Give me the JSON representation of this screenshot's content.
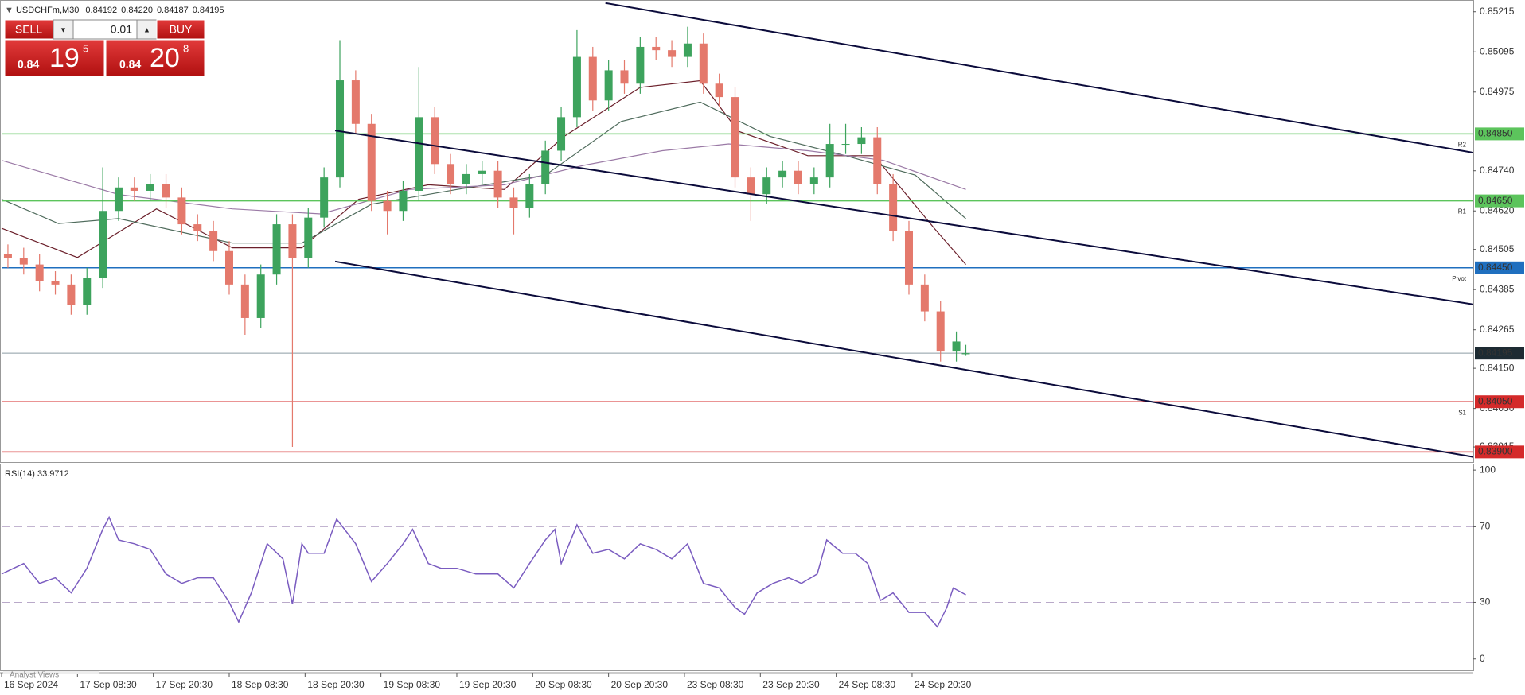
{
  "chart_data": [
    {
      "type": "candlestick",
      "title": "USDCHFm,M30",
      "ohlc_labels": [
        "0.84192",
        "0.84220",
        "0.84187",
        "0.84195"
      ],
      "x": [
        2,
        7,
        12,
        17,
        22,
        27,
        32,
        37,
        42,
        47,
        52,
        57,
        62,
        67,
        72,
        77,
        82,
        87,
        92,
        97,
        102,
        107,
        112,
        117,
        122,
        127,
        132,
        137,
        142,
        147,
        152,
        157,
        162,
        167,
        172,
        177,
        182,
        187,
        192,
        197,
        202,
        207,
        212,
        217,
        222,
        227,
        232,
        237,
        242,
        247,
        252,
        257,
        262,
        267,
        272,
        277,
        282,
        287,
        292,
        297,
        302,
        305
      ],
      "open": [
        0.8449,
        0.8448,
        0.8446,
        0.8441,
        0.844,
        0.8434,
        0.8442,
        0.8462,
        0.8469,
        0.8468,
        0.847,
        0.8466,
        0.8458,
        0.8456,
        0.845,
        0.844,
        0.843,
        0.8443,
        0.8458,
        0.8448,
        0.846,
        0.8472,
        0.8501,
        0.8488,
        0.8465,
        0.8462,
        0.8468,
        0.849,
        0.8476,
        0.847,
        0.8473,
        0.8474,
        0.8466,
        0.8463,
        0.847,
        0.848,
        0.849,
        0.8508,
        0.8495,
        0.8504,
        0.85,
        0.8511,
        0.851,
        0.8508,
        0.8512,
        0.85,
        0.8496,
        0.8472,
        0.8467,
        0.8472,
        0.8474,
        0.847,
        0.8472,
        0.8482,
        0.8482,
        0.8484,
        0.847,
        0.8456,
        0.844,
        0.8432,
        0.842,
        0.84192
      ],
      "high": [
        0.8452,
        0.8451,
        0.8449,
        0.8444,
        0.8443,
        0.8445,
        0.8475,
        0.8472,
        0.8472,
        0.8473,
        0.8473,
        0.8469,
        0.8461,
        0.8459,
        0.8453,
        0.8443,
        0.8446,
        0.8461,
        0.8461,
        0.8463,
        0.8475,
        0.8513,
        0.8504,
        0.8491,
        0.8468,
        0.8471,
        0.8505,
        0.8493,
        0.8479,
        0.8476,
        0.8477,
        0.8477,
        0.8469,
        0.8473,
        0.8483,
        0.8493,
        0.8516,
        0.8511,
        0.8507,
        0.8507,
        0.8514,
        0.8514,
        0.8513,
        0.8517,
        0.8515,
        0.8503,
        0.8499,
        0.8475,
        0.8475,
        0.8477,
        0.8477,
        0.8475,
        0.8488,
        0.8488,
        0.8487,
        0.8487,
        0.8473,
        0.8459,
        0.8443,
        0.8435,
        0.8426,
        0.8422
      ],
      "low": [
        0.8445,
        0.8443,
        0.8438,
        0.8437,
        0.8431,
        0.8431,
        0.8439,
        0.8459,
        0.8465,
        0.8465,
        0.8463,
        0.8455,
        0.8453,
        0.8447,
        0.8437,
        0.8425,
        0.8427,
        0.844,
        0.83915,
        0.8445,
        0.8457,
        0.8469,
        0.8485,
        0.8462,
        0.8455,
        0.8459,
        0.8465,
        0.8473,
        0.8467,
        0.8467,
        0.847,
        0.8463,
        0.8455,
        0.846,
        0.8467,
        0.8477,
        0.8487,
        0.8492,
        0.8492,
        0.8497,
        0.8497,
        0.8507,
        0.8505,
        0.8505,
        0.8497,
        0.8493,
        0.8469,
        0.8459,
        0.8464,
        0.8469,
        0.8467,
        0.8467,
        0.8469,
        0.8479,
        0.8479,
        0.8467,
        0.8453,
        0.8437,
        0.8429,
        0.8417,
        0.8417,
        0.84187
      ],
      "close": [
        0.8448,
        0.8446,
        0.8441,
        0.844,
        0.8434,
        0.8442,
        0.8462,
        0.8469,
        0.8468,
        0.847,
        0.8466,
        0.8458,
        0.8456,
        0.845,
        0.844,
        0.843,
        0.8443,
        0.8458,
        0.8448,
        0.846,
        0.8472,
        0.8501,
        0.8488,
        0.8465,
        0.8462,
        0.8468,
        0.849,
        0.8476,
        0.847,
        0.8473,
        0.8474,
        0.8466,
        0.8463,
        0.847,
        0.848,
        0.849,
        0.8508,
        0.8495,
        0.8504,
        0.85,
        0.8511,
        0.851,
        0.8508,
        0.8512,
        0.85,
        0.8496,
        0.8472,
        0.8467,
        0.8472,
        0.8474,
        0.847,
        0.8472,
        0.8482,
        0.8482,
        0.8484,
        0.847,
        0.8456,
        0.844,
        0.8432,
        0.842,
        0.8423,
        0.84195
      ],
      "up_color": "#3da35d",
      "down_color": "#e4796c",
      "xlim": [
        0,
        465.5
      ],
      "ylim": [
        0.8387,
        0.8525
      ],
      "yticks": [
        0.85215,
        0.85095,
        0.84975,
        {
          "value": 0.8474,
          "label": "0.84740"
        },
        {
          "value": 0.8462,
          "label": "0.84620"
        },
        0.84505,
        0.84385,
        0.84265,
        {
          "value": 0.8415,
          "label": "0.84150"
        },
        {
          "value": 0.8403,
          "label": "0.84030"
        },
        0.83915
      ],
      "moving_averages": [
        {
          "color": "#6b1f2a",
          "x": [
            0,
            24,
            49,
            73,
            95,
            113,
            135,
            159,
            178,
            202,
            221,
            233,
            255,
            276,
            295,
            305
          ],
          "values": [
            0.84568,
            0.84481,
            0.84626,
            0.8451,
            0.8451,
            0.84655,
            0.84698,
            0.84684,
            0.84843,
            0.84989,
            0.85009,
            0.84858,
            0.84785,
            0.84785,
            0.84568,
            0.8446
          ]
        },
        {
          "color": "#4f6b5c",
          "x": [
            0,
            18,
            37,
            73,
            95,
            117,
            144,
            172,
            196,
            221,
            243,
            267,
            289,
            305
          ],
          "values": [
            0.84655,
            0.84582,
            0.84597,
            0.84524,
            0.84524,
            0.8464,
            0.84684,
            0.84727,
            0.84887,
            0.84945,
            0.84843,
            0.84785,
            0.84727,
            0.84597
          ]
        },
        {
          "color": "#9b7aa6",
          "x": [
            0,
            37,
            73,
            101,
            129,
            159,
            184,
            209,
            230,
            255,
            279,
            305
          ],
          "values": [
            0.84771,
            0.84669,
            0.84626,
            0.84611,
            0.84684,
            0.84698,
            0.84756,
            0.848,
            0.8482,
            0.848,
            0.84771,
            0.84684
          ]
        }
      ],
      "trendlines": [
        {
          "color": "#0b0b3b",
          "x": [
            191,
            465.5
          ],
          "y": [
            0.85241,
            0.84794
          ]
        },
        {
          "color": "#0b0b3b",
          "x": [
            105.5,
            465.5
          ],
          "y": [
            0.8486,
            0.84341
          ]
        },
        {
          "color": "#0b0b3b",
          "x": [
            105.5,
            465.5
          ],
          "y": [
            0.84469,
            0.83885
          ]
        }
      ],
      "levels": [
        {
          "name": "R2",
          "value": 0.8485,
          "label": "0.84850",
          "color": "#5cc45c"
        },
        {
          "name": "R1",
          "value": 0.8465,
          "label": "0.84650",
          "color": "#5cc45c"
        },
        {
          "name": "Pivot",
          "value": 0.8445,
          "label": "0.84450",
          "color": "#1f6fbf"
        },
        {
          "name": "S1",
          "value": 0.8405,
          "label": "0.84050",
          "color": "#d42a2a"
        },
        {
          "value": 0.839,
          "label": "0.83900",
          "color": "#d42a2a"
        }
      ],
      "last_price": 0.84195,
      "trade_panel": {
        "sell": "SELL",
        "buy": "BUY",
        "lot": "0.01",
        "bid": [
          "0.84",
          "19",
          "5"
        ],
        "ask": [
          "0.84",
          "20",
          "8"
        ]
      },
      "footer": "Analyst Views"
    },
    {
      "type": "line",
      "title": "RSI(14) 33.9712",
      "color": "#7a5cc0",
      "x": [
        0,
        7,
        12,
        17,
        22,
        27,
        32,
        34,
        37,
        42,
        47,
        52,
        57,
        62,
        67,
        72,
        75,
        79,
        84,
        89,
        92,
        95,
        97,
        102,
        106,
        112,
        117,
        122,
        127,
        130,
        135,
        139,
        144,
        150,
        157,
        162,
        167,
        172,
        175,
        177,
        182,
        187,
        192,
        197,
        202,
        207,
        212,
        217,
        222,
        227,
        232,
        235,
        239,
        244,
        249,
        253,
        258,
        261,
        266,
        270,
        274,
        278,
        282,
        287,
        292,
        296,
        299,
        301,
        305
      ],
      "values": [
        45,
        50.5,
        40,
        43,
        35,
        48,
        68.6,
        75,
        63,
        61,
        58,
        45,
        40,
        43,
        43,
        30,
        19.6,
        35,
        61,
        53,
        29,
        61,
        56,
        56,
        74,
        61,
        41,
        50.5,
        61,
        68.6,
        50.5,
        48,
        48,
        45,
        45,
        37.6,
        50.5,
        63,
        68.6,
        50.5,
        71,
        56,
        58,
        53,
        61,
        58,
        53,
        61,
        40,
        37.6,
        27.3,
        23.7,
        35,
        40,
        43,
        40,
        45,
        63,
        56,
        56,
        50.5,
        31,
        35,
        24.7,
        24.7,
        17,
        27.3,
        37.6,
        33.97
      ],
      "xlim": [
        0,
        465.5
      ],
      "ylim": [
        -6,
        103
      ],
      "yticks": [
        100,
        70,
        30,
        0
      ],
      "levels": [
        70,
        30
      ],
      "xticks": [
        {
          "value": 0,
          "label": "16 Sep 2024"
        },
        {
          "value": 24,
          "label": "17 Sep 08:30"
        },
        {
          "value": 48,
          "label": "17 Sep 20:30"
        },
        {
          "value": 72,
          "label": "18 Sep 08:30"
        },
        {
          "value": 96,
          "label": "18 Sep 20:30"
        },
        {
          "value": 120,
          "label": "19 Sep 08:30"
        },
        {
          "value": 144,
          "label": "19 Sep 20:30"
        },
        {
          "value": 168,
          "label": "20 Sep 08:30"
        },
        {
          "value": 192,
          "label": "20 Sep 20:30"
        },
        {
          "value": 216,
          "label": "23 Sep 08:30"
        },
        {
          "value": 240,
          "label": "23 Sep 20:30"
        },
        {
          "value": 264,
          "label": "24 Sep 08:30"
        },
        {
          "value": 288,
          "label": "24 Sep 20:30"
        }
      ]
    }
  ]
}
